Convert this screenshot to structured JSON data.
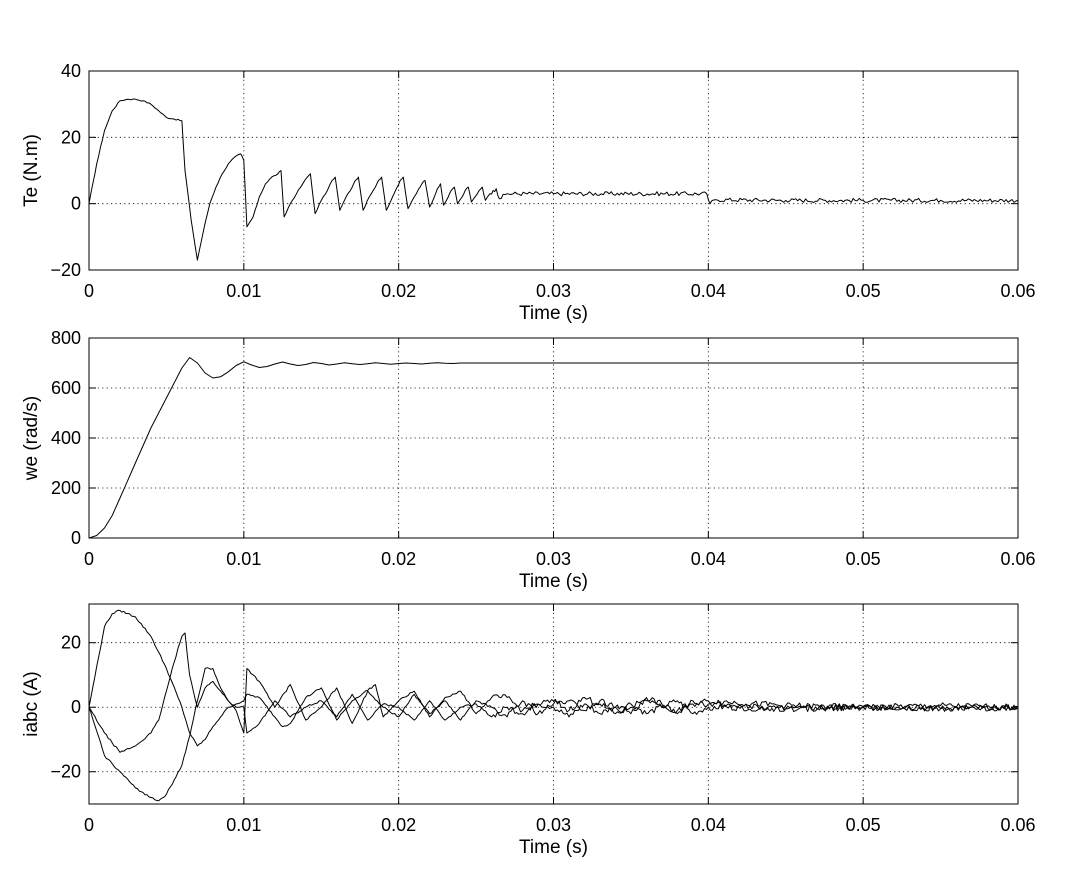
{
  "chart_data": [
    {
      "type": "line",
      "ylabel": "Te (N.m)",
      "xlabel": "Time (s)",
      "xlim": [
        0,
        0.06
      ],
      "ylim": [
        -20,
        40
      ],
      "xticks": [
        0,
        0.01,
        0.02,
        0.03,
        0.04,
        0.05,
        0.06
      ],
      "xtick_labels": [
        "0",
        "0.01",
        "0.02",
        "0.03",
        "0.04",
        "0.05",
        "0.06"
      ],
      "yticks": [
        -20,
        0,
        20,
        40
      ],
      "ytick_labels": [
        "−20",
        "0",
        "20",
        "40"
      ],
      "grid": true,
      "series": [
        {
          "x": [
            0,
            0.0005,
            0.001,
            0.0015,
            0.002,
            0.0025,
            0.003,
            0.0035,
            0.004,
            0.0045,
            0.005,
            0.0055,
            0.006,
            0.0062,
            0.0066,
            0.007,
            0.0074,
            0.0078,
            0.0082,
            0.0086,
            0.009,
            0.0094,
            0.0098,
            0.01,
            0.0102,
            0.0106,
            0.011,
            0.0114,
            0.0118,
            0.0122,
            0.0124,
            0.0126,
            0.013,
            0.0134,
            0.0138,
            0.0141,
            0.0143,
            0.0146,
            0.015,
            0.0154,
            0.0157,
            0.0159,
            0.0162,
            0.0166,
            0.017,
            0.0172,
            0.0174,
            0.0177,
            0.0181,
            0.0185,
            0.0187,
            0.0189,
            0.0192,
            0.0196,
            0.0199,
            0.0201,
            0.0203,
            0.0206,
            0.021,
            0.0213,
            0.0215,
            0.0217,
            0.022,
            0.0223,
            0.0225,
            0.0227,
            0.0229,
            0.0232,
            0.0234,
            0.0236,
            0.0238,
            0.0241,
            0.0243,
            0.0245,
            0.0247,
            0.025,
            0.0252,
            0.0254,
            0.0256,
            0.0259,
            0.0261,
            0.0263,
            0.0265,
            0.027,
            0.03,
            0.0399,
            0.0401,
            0.0405,
            0.045,
            0.05,
            0.055,
            0.06
          ],
          "y": [
            0,
            12,
            22,
            28,
            31,
            31.5,
            31.5,
            31,
            30,
            28,
            26,
            25.5,
            25,
            10,
            -5,
            -17,
            -8,
            0,
            5,
            9,
            12,
            14,
            15,
            13,
            -7,
            -4,
            2,
            6,
            8,
            9,
            10,
            -4,
            0,
            3,
            6,
            8,
            9,
            -3,
            1,
            4,
            7,
            8,
            -2,
            2,
            5,
            7,
            8,
            -2,
            2,
            5,
            7,
            8,
            -2,
            2,
            5,
            7,
            8,
            -1.5,
            2,
            4.5,
            6,
            7,
            -1,
            2,
            4.5,
            6,
            -0.5,
            2,
            4,
            5,
            0,
            2,
            4,
            5,
            0.5,
            2.5,
            4,
            5,
            1,
            3,
            4,
            4.5,
            1.5,
            3,
            3,
            3,
            0,
            1.2,
            1,
            1,
            1,
            1
          ],
          "noise": 0.8
        }
      ]
    },
    {
      "type": "line",
      "ylabel": "we (rad/s)",
      "xlabel": "Time (s)",
      "xlim": [
        0,
        0.06
      ],
      "ylim": [
        0,
        800
      ],
      "xticks": [
        0,
        0.01,
        0.02,
        0.03,
        0.04,
        0.05,
        0.06
      ],
      "xtick_labels": [
        "0",
        "0.01",
        "0.02",
        "0.03",
        "0.04",
        "0.05",
        "0.06"
      ],
      "yticks": [
        0,
        200,
        400,
        600,
        800
      ],
      "ytick_labels": [
        "0",
        "200",
        "400",
        "600",
        "800"
      ],
      "grid": true,
      "series": [
        {
          "x": [
            0,
            0.0005,
            0.001,
            0.0015,
            0.002,
            0.003,
            0.004,
            0.005,
            0.006,
            0.0065,
            0.007,
            0.0075,
            0.008,
            0.0085,
            0.009,
            0.0095,
            0.01,
            0.0105,
            0.011,
            0.0115,
            0.012,
            0.0125,
            0.013,
            0.0135,
            0.014,
            0.0145,
            0.015,
            0.0155,
            0.016,
            0.0165,
            0.017,
            0.0175,
            0.018,
            0.0185,
            0.019,
            0.0195,
            0.02,
            0.0205,
            0.021,
            0.0215,
            0.022,
            0.0225,
            0.023,
            0.0235,
            0.024,
            0.06
          ],
          "y": [
            0,
            10,
            40,
            90,
            160,
            300,
            440,
            560,
            680,
            722,
            700,
            660,
            640,
            645,
            665,
            690,
            705,
            692,
            682,
            686,
            696,
            704,
            696,
            690,
            694,
            702,
            698,
            692,
            696,
            701,
            697,
            694,
            697,
            701,
            698,
            695,
            698,
            700,
            698,
            696,
            699,
            701,
            699,
            698,
            700,
            700
          ]
        }
      ]
    },
    {
      "type": "line",
      "ylabel": "iabc (A)",
      "xlabel": "Time (s)",
      "xlim": [
        0,
        0.06
      ],
      "ylim": [
        -30,
        32
      ],
      "xticks": [
        0,
        0.01,
        0.02,
        0.03,
        0.04,
        0.05,
        0.06
      ],
      "xtick_labels": [
        "0",
        "0.01",
        "0.02",
        "0.03",
        "0.04",
        "0.05",
        "0.06"
      ],
      "yticks": [
        -20,
        0,
        20
      ],
      "ytick_labels": [
        "−20",
        "0",
        "20"
      ],
      "grid": true,
      "series": [
        {
          "x": [
            0,
            0.001,
            0.0015,
            0.002,
            0.003,
            0.004,
            0.005,
            0.006,
            0.0065,
            0.007,
            0.0075,
            0.008,
            0.0085,
            0.009,
            0.0095,
            0.01,
            0.0102,
            0.011,
            0.012,
            0.0125,
            0.013,
            0.014,
            0.015,
            0.016,
            0.017,
            0.0185,
            0.019,
            0.02,
            0.021,
            0.022,
            0.023,
            0.024,
            0.025,
            0.026,
            0.027,
            0.028,
            0.029,
            0.03,
            0.031,
            0.032,
            0.033,
            0.034,
            0.035,
            0.036,
            0.037,
            0.038,
            0.039,
            0.04,
            0.045,
            0.05,
            0.055,
            0.06
          ],
          "y": [
            0,
            25,
            29,
            30,
            28,
            22,
            12,
            0,
            -8,
            -12,
            -10,
            -6,
            -3,
            0,
            1,
            2,
            4,
            3,
            -3,
            -6,
            -5,
            3,
            6,
            -4,
            2,
            7,
            -3,
            2,
            5,
            -3,
            3,
            5,
            -2,
            3,
            3,
            -1,
            1,
            2,
            -1,
            3,
            1,
            -2,
            0,
            3,
            1,
            -2,
            1,
            2,
            0.5,
            0,
            0.5,
            0
          ],
          "noise": 1.2
        },
        {
          "x": [
            0,
            0.001,
            0.002,
            0.003,
            0.004,
            0.0045,
            0.005,
            0.0055,
            0.006,
            0.0062,
            0.0065,
            0.007,
            0.0075,
            0.008,
            0.0085,
            0.009,
            0.0095,
            0.01,
            0.0102,
            0.011,
            0.012,
            0.013,
            0.014,
            0.015,
            0.016,
            0.017,
            0.018,
            0.019,
            0.02,
            0.021,
            0.022,
            0.023,
            0.024,
            0.025,
            0.026,
            0.027,
            0.028,
            0.029,
            0.03,
            0.031,
            0.032,
            0.033,
            0.034,
            0.035,
            0.036,
            0.037,
            0.038,
            0.039,
            0.04,
            0.045,
            0.05,
            0.055,
            0.06
          ],
          "y": [
            0,
            -8,
            -14,
            -12,
            -8,
            -4,
            5,
            14,
            22,
            23,
            10,
            0,
            6,
            8,
            5,
            2,
            -1,
            -8,
            12,
            8,
            0,
            7,
            -4,
            0,
            6,
            -5,
            5,
            0,
            -3,
            4,
            -2,
            2,
            -4,
            2,
            0,
            -3,
            2,
            -2,
            1,
            2,
            -1,
            2,
            0,
            -2,
            2,
            0,
            -1,
            2,
            1,
            -0.5,
            0,
            -0.5,
            0
          ],
          "noise": 1.2
        },
        {
          "x": [
            0,
            0.001,
            0.002,
            0.003,
            0.004,
            0.0045,
            0.005,
            0.006,
            0.0065,
            0.007,
            0.0075,
            0.008,
            0.0085,
            0.009,
            0.0095,
            0.01,
            0.0102,
            0.011,
            0.012,
            0.013,
            0.014,
            0.015,
            0.016,
            0.017,
            0.018,
            0.019,
            0.02,
            0.021,
            0.022,
            0.023,
            0.024,
            0.025,
            0.026,
            0.027,
            0.028,
            0.029,
            0.03,
            0.031,
            0.032,
            0.033,
            0.034,
            0.035,
            0.036,
            0.037,
            0.038,
            0.039,
            0.04,
            0.045,
            0.05,
            0.055,
            0.06
          ],
          "y": [
            0,
            -15,
            -20,
            -25,
            -28,
            -29,
            -27,
            -18,
            -9,
            2,
            12,
            12,
            6,
            2,
            0,
            0,
            -8,
            -5,
            2,
            -3,
            0,
            2,
            -3,
            4,
            -4,
            1,
            0,
            -4,
            2,
            -4,
            0,
            1,
            -3,
            0,
            -2,
            1,
            0,
            -3,
            1,
            -2,
            0,
            1,
            -2,
            0,
            2,
            -2,
            0,
            -0.5,
            0,
            -0.5,
            0
          ],
          "noise": 1.2
        }
      ]
    }
  ]
}
